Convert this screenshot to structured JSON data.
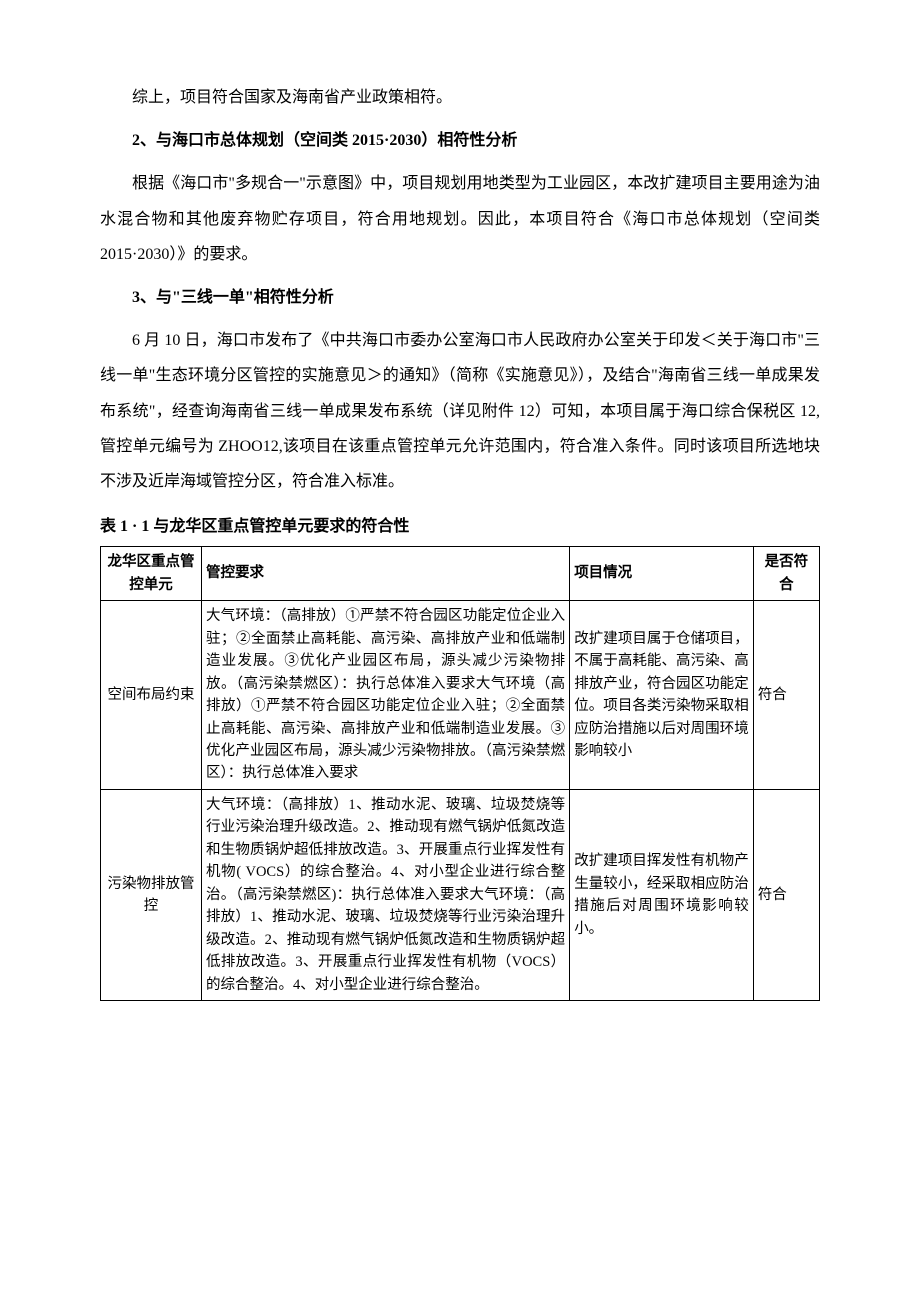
{
  "intro_line": "综上，项目符合国家及海南省产业政策相符。",
  "section2": {
    "heading": "2、与海口市总体规划（空间类 2015·2030）相符性分析",
    "para": "根据《海口市\"多规合一\"示意图》中，项目规划用地类型为工业园区，本改扩建项目主要用途为油水混合物和其他废弃物贮存项目，符合用地规划。因此，本项目符合《海口市总体规划（空间类 2015·2030）》的要求。"
  },
  "section3": {
    "heading": "3、与\"三线一单\"相符性分析",
    "para": "6 月 10 日，海口市发布了《中共海口市委办公室海口市人民政府办公室关于印发＜关于海口市\"三线一单\"生态环境分区管控的实施意见＞的通知》（简称《实施意见》），及结合\"海南省三线一单成果发布系统\"，经查询海南省三线一单成果发布系统（详见附件 12）可知，本项目属于海口综合保税区 12,管控单元编号为 ZHOO12,该项目在该重点管控单元允许范围内，符合准入条件。同时该项目所选地块不涉及近岸海域管控分区，符合准入标准。"
  },
  "table": {
    "title": "表 1 · 1 与龙华区重点管控单元要求的符合性",
    "headers": {
      "unit": "龙华区重点管控单元",
      "requirement": "管控要求",
      "project": "项目情况",
      "fit": "是否符合"
    },
    "rows": [
      {
        "unit": "空间布局约束",
        "requirement": "大气环境：（高排放）①严禁不符合园区功能定位企业入驻；②全面禁止高耗能、高污染、高排放产业和低端制造业发展。③优化产业园区布局，源头减少污染物排放。（高污染禁燃区）：执行总体准入要求大气环境（高排放）①严禁不符合园区功能定位企业入驻；②全面禁止高耗能、高污染、高排放产业和低端制造业发展。③优化产业园区布局，源头减少污染物排放。（高污染禁燃区）：执行总体准入要求",
        "project": "改扩建项目属于仓储项目，不属于高耗能、高污染、高排放产业，符合园区功能定位。项目各类污染物采取相应防治措施以后对周围环境影响较小",
        "fit": "符合"
      },
      {
        "unit": "污染物排放管控",
        "requirement": "大气环境：（高排放）1、推动水泥、玻璃、垃圾焚烧等行业污染治理升级改造。2、推动现有燃气锅炉低氮改造和生物质锅炉超低排放改造。3、开展重点行业挥发性有机物( VOCS）的综合整治。4、对小型企业进行综合整治。（高污染禁燃区)：执行总体准入要求大气环境：（高排放）1、推动水泥、玻璃、垃圾焚烧等行业污染治理升级改造。2、推动现有燃气锅炉低氮改造和生物质锅炉超低排放改造。3、开展重点行业挥发性有机物（VOCS）的综合整治。4、对小型企业进行综合整治。",
        "project": "改扩建项目挥发性有机物产生量较小，经采取相应防治措施后对周围环境影响较小。",
        "fit": "符合"
      }
    ]
  }
}
